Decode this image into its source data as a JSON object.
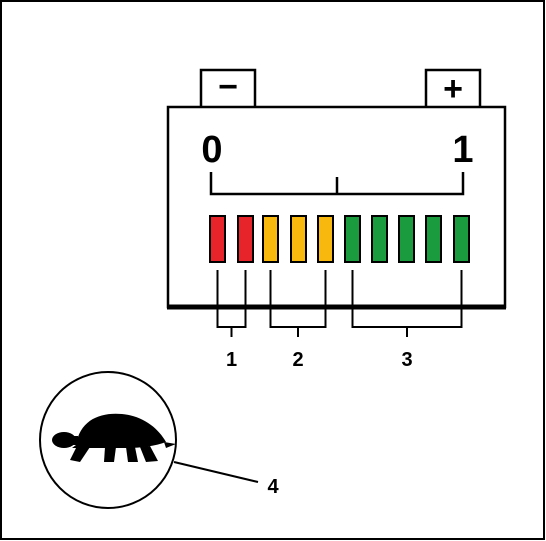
{
  "battery": {
    "negative_symbol": "−",
    "positive_symbol": "+",
    "scale_min": "0",
    "scale_max": "1"
  },
  "segments": [
    {
      "color": "#e8242b"
    },
    {
      "color": "#e8242b"
    },
    {
      "color": "#f9b80e"
    },
    {
      "color": "#f9b80e"
    },
    {
      "color": "#f9b80e"
    },
    {
      "color": "#1a9c3e"
    },
    {
      "color": "#1a9c3e"
    },
    {
      "color": "#1a9c3e"
    },
    {
      "color": "#1a9c3e"
    },
    {
      "color": "#1a9c3e"
    }
  ],
  "groups": [
    {
      "label": "1",
      "from": 0,
      "to": 1
    },
    {
      "label": "2",
      "from": 2,
      "to": 4
    },
    {
      "label": "3",
      "from": 5,
      "to": 9
    }
  ],
  "callout": {
    "label": "4",
    "icon": "turtle-icon"
  }
}
